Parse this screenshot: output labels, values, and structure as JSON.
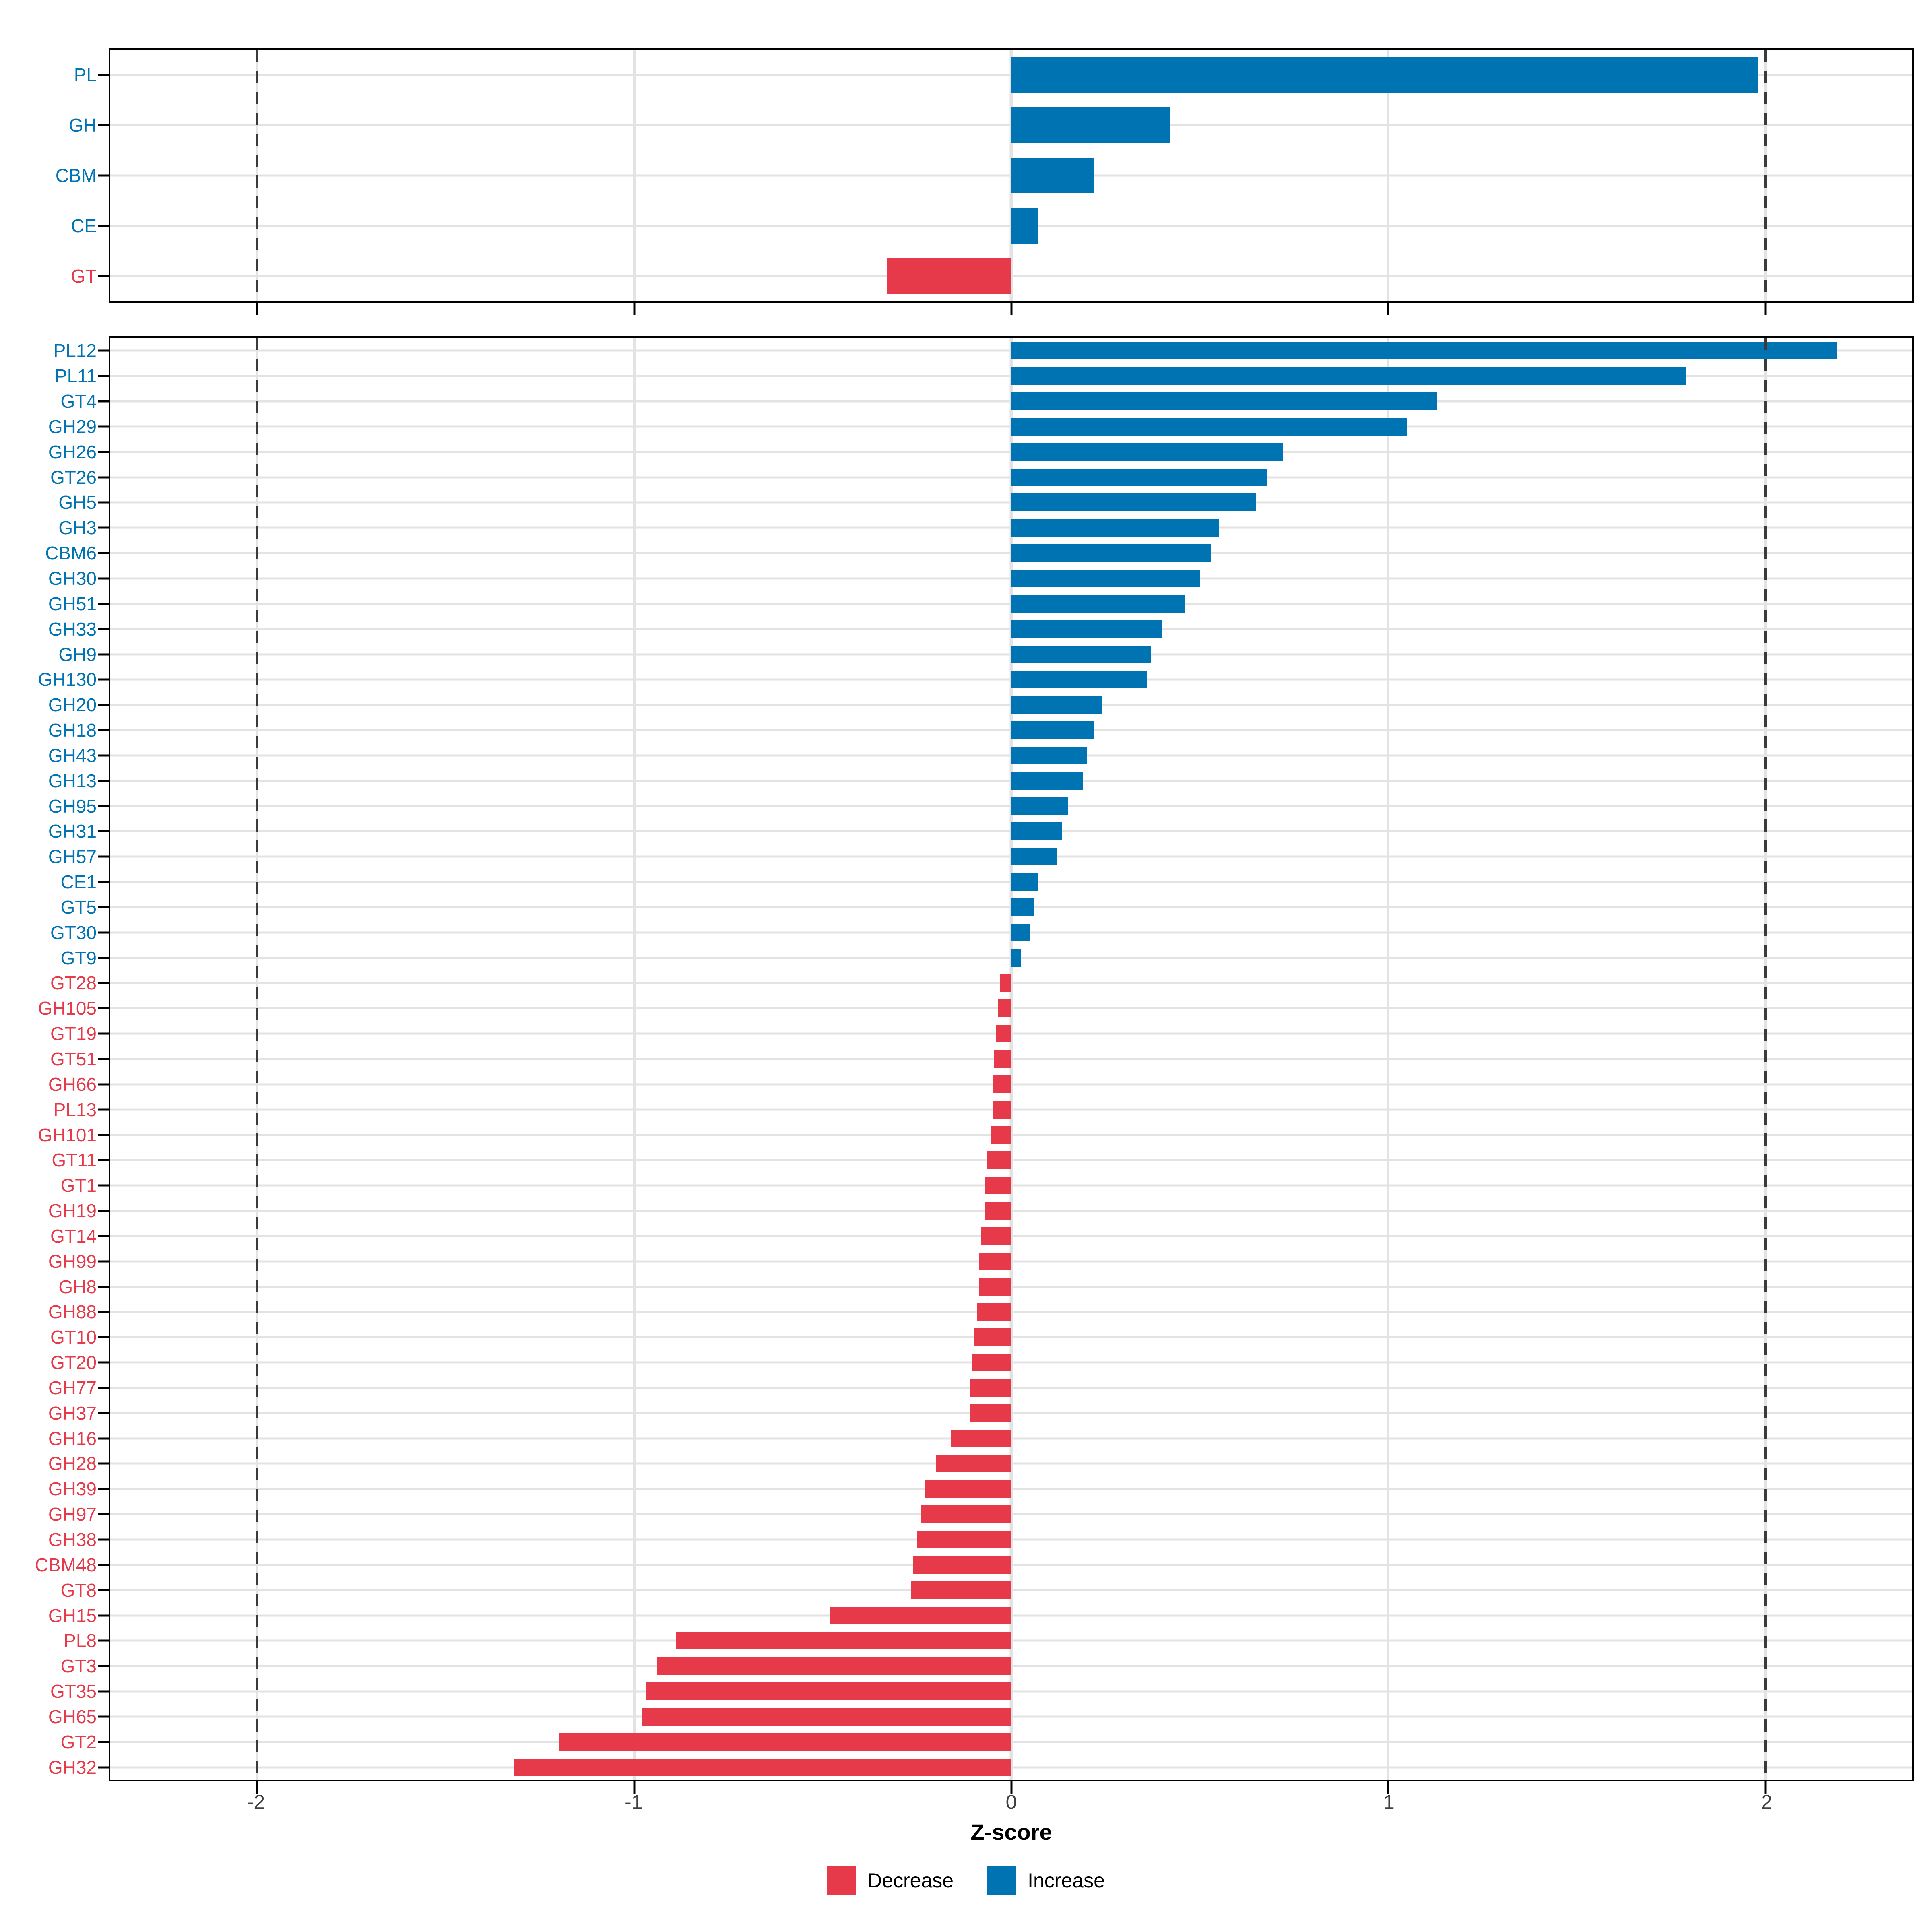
{
  "axis": {
    "title": "Z-score",
    "ticks": [
      "-2",
      "-1",
      "0",
      "1",
      "2"
    ],
    "tick_values": [
      -2,
      -1,
      0,
      1,
      2
    ],
    "xmin": -2.39,
    "xmax": 2.39,
    "dashed_at": [
      -2,
      2
    ]
  },
  "legend": {
    "items": [
      {
        "label": "Decrease",
        "color": "#e6394a"
      },
      {
        "label": "Increase",
        "color": "#0073b2"
      }
    ]
  },
  "colors": {
    "increase": "#0073b2",
    "decrease": "#e6394a",
    "grid": "#e3e3e3",
    "dashed": "#3b3b3b",
    "border": "#000000",
    "tick_label": "#404040"
  },
  "chart_data": [
    {
      "type": "bar",
      "orientation": "horizontal",
      "panel": "cazyme-families",
      "categories": [
        "PL",
        "GH",
        "CBM",
        "CE",
        "GT"
      ],
      "values": [
        1.98,
        0.42,
        0.22,
        0.07,
        -0.33
      ],
      "xlabel": "Z-score",
      "xlim": [
        -2.39,
        2.39
      ],
      "grid": true,
      "legend_position": "bottom"
    },
    {
      "type": "bar",
      "orientation": "horizontal",
      "panel": "cazyme-subfamilies",
      "categories": [
        "PL12",
        "PL11",
        "GT4",
        "GH29",
        "GH26",
        "GT26",
        "GH5",
        "GH3",
        "CBM6",
        "GH30",
        "GH51",
        "GH33",
        "GH9",
        "GH130",
        "GH20",
        "GH18",
        "GH43",
        "GH13",
        "GH95",
        "GH31",
        "GH57",
        "CE1",
        "GT5",
        "GT30",
        "GT9",
        "GT28",
        "GH105",
        "GT19",
        "GT51",
        "GH66",
        "PL13",
        "GH101",
        "GT11",
        "GT1",
        "GH19",
        "GT14",
        "GH99",
        "GH8",
        "GH88",
        "GT10",
        "GT20",
        "GH77",
        "GH37",
        "GH16",
        "GH28",
        "GH39",
        "GH97",
        "GH38",
        "CBM48",
        "GT8",
        "GH15",
        "PL8",
        "GT3",
        "GT35",
        "GH65",
        "GT2",
        "GH32"
      ],
      "values": [
        2.19,
        1.79,
        1.13,
        1.05,
        0.72,
        0.68,
        0.65,
        0.55,
        0.53,
        0.5,
        0.46,
        0.4,
        0.37,
        0.36,
        0.24,
        0.22,
        0.2,
        0.19,
        0.15,
        0.135,
        0.12,
        0.07,
        0.06,
        0.05,
        0.025,
        -0.03,
        -0.035,
        -0.04,
        -0.045,
        -0.05,
        -0.05,
        -0.055,
        -0.065,
        -0.07,
        -0.07,
        -0.08,
        -0.085,
        -0.085,
        -0.09,
        -0.1,
        -0.105,
        -0.11,
        -0.11,
        -0.16,
        -0.2,
        -0.23,
        -0.24,
        -0.25,
        -0.26,
        -0.265,
        -0.48,
        -0.89,
        -0.94,
        -0.97,
        -0.98,
        -1.2,
        -1.32
      ],
      "xlabel": "Z-score",
      "xlim": [
        -2.39,
        2.39
      ],
      "grid": true
    }
  ]
}
